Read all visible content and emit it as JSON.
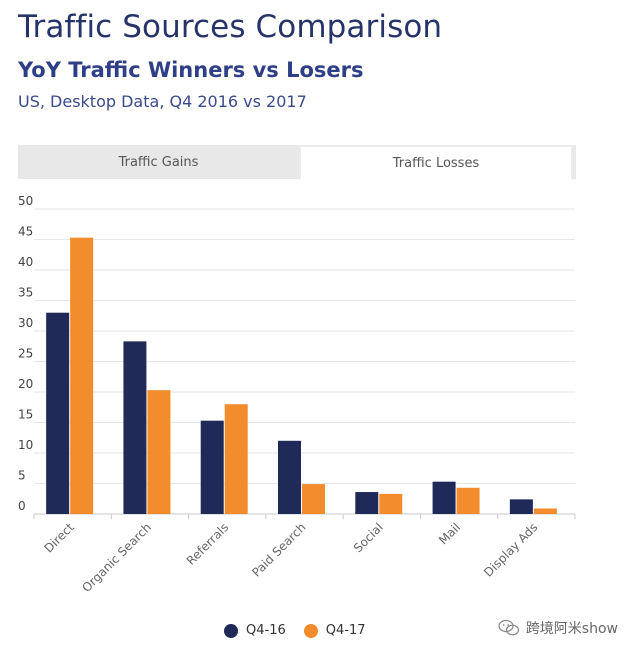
{
  "header": {
    "title": "Traffic Sources Comparison",
    "subtitle": "YoY Traffic Winners vs Losers",
    "caption": "US, Desktop Data, Q4 2016 vs 2017"
  },
  "tabs": [
    {
      "label": "Traffic Gains",
      "active": false
    },
    {
      "label": "Traffic Losses",
      "active": true
    }
  ],
  "watermark": {
    "text": "跨境阿米show",
    "icon": "wechat-icon"
  },
  "chart_data": {
    "type": "bar",
    "categories": [
      "Direct",
      "Organic Search",
      "Referrals",
      "Paid Search",
      "Social",
      "Mail",
      "Display Ads"
    ],
    "series": [
      {
        "name": "Q4-16",
        "color": "#202a59",
        "values": [
          33,
          28.3,
          15.3,
          12,
          3.6,
          5.3,
          2.4
        ]
      },
      {
        "name": "Q4-17",
        "color": "#f28c2d",
        "values": [
          45.3,
          20.3,
          18,
          4.9,
          3.3,
          4.3,
          0.9
        ]
      }
    ],
    "ylim": [
      0,
      50
    ],
    "yticks": [
      0,
      5,
      10,
      15,
      20,
      25,
      30,
      35,
      40,
      45,
      50
    ],
    "xlabel": "",
    "ylabel": "",
    "grid": true,
    "legend": "bottom-center"
  }
}
